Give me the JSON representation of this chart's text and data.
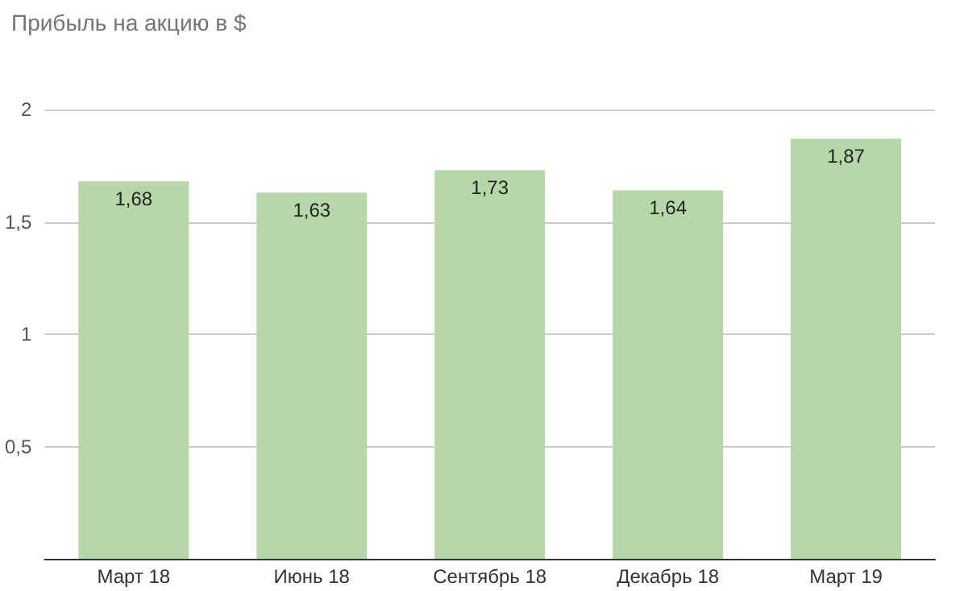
{
  "chart_data": {
    "type": "bar",
    "title": "Прибыль на акцию в $",
    "categories": [
      "Март 18",
      "Июнь 18",
      "Сентябрь 18",
      "Декабрь 18",
      "Март 19"
    ],
    "values": [
      1.68,
      1.63,
      1.73,
      1.64,
      1.87
    ],
    "value_labels": [
      "1,68",
      "1,63",
      "1,73",
      "1,64",
      "1,87"
    ],
    "color": "#b6d7a8",
    "ylim": [
      0,
      2
    ],
    "yticks": [
      {
        "value": 0,
        "label": null
      },
      {
        "value": 0.5,
        "label": "0,5"
      },
      {
        "value": 1,
        "label": "1"
      },
      {
        "value": 1.5,
        "label": "1,5"
      },
      {
        "value": 2,
        "label": "2"
      }
    ],
    "grid": "y"
  }
}
